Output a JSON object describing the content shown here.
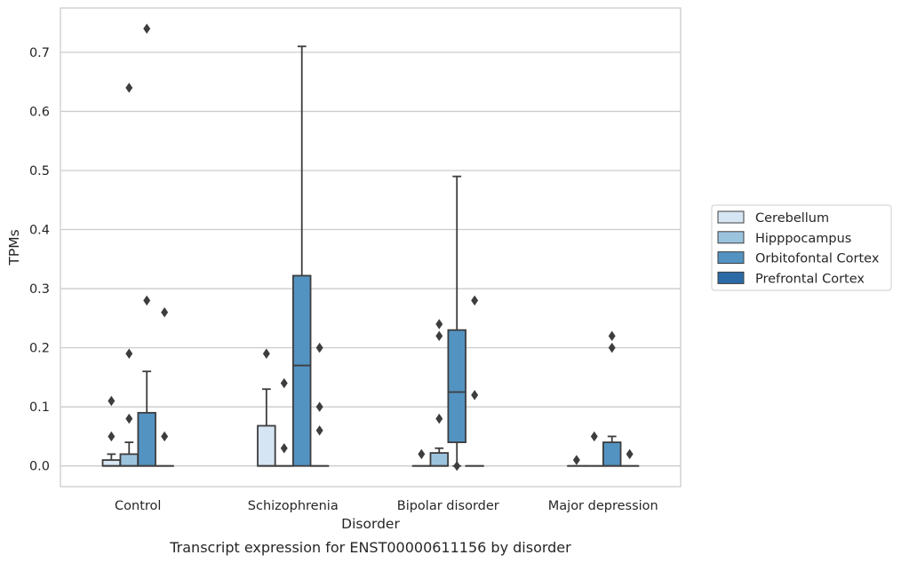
{
  "chart_data": {
    "type": "box",
    "caption": "Transcript expression for ENST00000611156 by disorder",
    "xlabel": "Disorder",
    "ylabel": "TPMs",
    "ylim": [
      -0.035,
      0.775
    ],
    "yticks": [
      "0.0",
      "0.1",
      "0.2",
      "0.3",
      "0.4",
      "0.5",
      "0.6",
      "0.7"
    ],
    "grid": true,
    "legend_position": "right",
    "categories": [
      "Control",
      "Schizophrenia",
      "Bipolar disorder",
      "Major depression"
    ],
    "colors": {
      "Cerebellum": "#d6e5f3",
      "Hipppocampus": "#9cc3de",
      "Orbitofontal Cortex": "#5393c2",
      "Prefrontal Cortex": "#2b6aa6"
    },
    "series": [
      {
        "name": "Cerebellum",
        "boxes": [
          {
            "whislo": 0.0,
            "q1": 0.0,
            "med": 0.0,
            "q3": 0.01,
            "whishi": 0.02,
            "fliers": [
              0.05,
              0.11
            ]
          },
          {
            "whislo": 0.0,
            "q1": 0.0,
            "med": 0.0,
            "q3": 0.068,
            "whishi": 0.13,
            "fliers": [
              0.19
            ]
          },
          {
            "whislo": 0.0,
            "q1": 0.0,
            "med": 0.0,
            "q3": 0.0,
            "whishi": 0.0,
            "fliers": [
              0.02
            ]
          },
          {
            "whislo": 0.0,
            "q1": 0.0,
            "med": 0.0,
            "q3": 0.0,
            "whishi": 0.0,
            "fliers": [
              0.01
            ]
          }
        ]
      },
      {
        "name": "Hipppocampus",
        "boxes": [
          {
            "whislo": 0.0,
            "q1": 0.0,
            "med": 0.0,
            "q3": 0.02,
            "whishi": 0.04,
            "fliers": [
              0.08,
              0.19,
              0.64
            ]
          },
          {
            "whislo": 0.0,
            "q1": 0.0,
            "med": 0.0,
            "q3": 0.0,
            "whishi": 0.0,
            "fliers": [
              0.03,
              0.14
            ]
          },
          {
            "whislo": 0.0,
            "q1": 0.0,
            "med": 0.0,
            "q3": 0.022,
            "whishi": 0.03,
            "fliers": [
              0.08,
              0.22,
              0.24
            ]
          },
          {
            "whislo": 0.0,
            "q1": 0.0,
            "med": 0.0,
            "q3": 0.0,
            "whishi": 0.0,
            "fliers": [
              0.05
            ]
          }
        ]
      },
      {
        "name": "Orbitofontal Cortex",
        "boxes": [
          {
            "whislo": 0.0,
            "q1": 0.0,
            "med": 0.0,
            "q3": 0.09,
            "whishi": 0.16,
            "fliers": [
              0.28,
              0.74
            ]
          },
          {
            "whislo": 0.0,
            "q1": 0.0,
            "med": 0.17,
            "q3": 0.322,
            "whishi": 0.71,
            "fliers": []
          },
          {
            "whislo": 0.0,
            "q1": 0.04,
            "med": 0.125,
            "q3": 0.23,
            "whishi": 0.49,
            "fliers": [
              0.0
            ]
          },
          {
            "whislo": 0.0,
            "q1": 0.0,
            "med": 0.0,
            "q3": 0.04,
            "whishi": 0.05,
            "fliers": [
              0.2,
              0.22
            ]
          }
        ]
      },
      {
        "name": "Prefrontal Cortex",
        "boxes": [
          {
            "whislo": 0.0,
            "q1": 0.0,
            "med": 0.0,
            "q3": 0.0,
            "whishi": 0.0,
            "fliers": [
              0.05,
              0.26
            ]
          },
          {
            "whislo": 0.0,
            "q1": 0.0,
            "med": 0.0,
            "q3": 0.0,
            "whishi": 0.0,
            "fliers": [
              0.06,
              0.1,
              0.2
            ]
          },
          {
            "whislo": 0.0,
            "q1": 0.0,
            "med": 0.0,
            "q3": 0.0,
            "whishi": 0.0,
            "fliers": [
              0.12,
              0.28
            ]
          },
          {
            "whislo": 0.0,
            "q1": 0.0,
            "med": 0.0,
            "q3": 0.0,
            "whishi": 0.0,
            "fliers": [
              0.02
            ]
          }
        ]
      }
    ]
  }
}
